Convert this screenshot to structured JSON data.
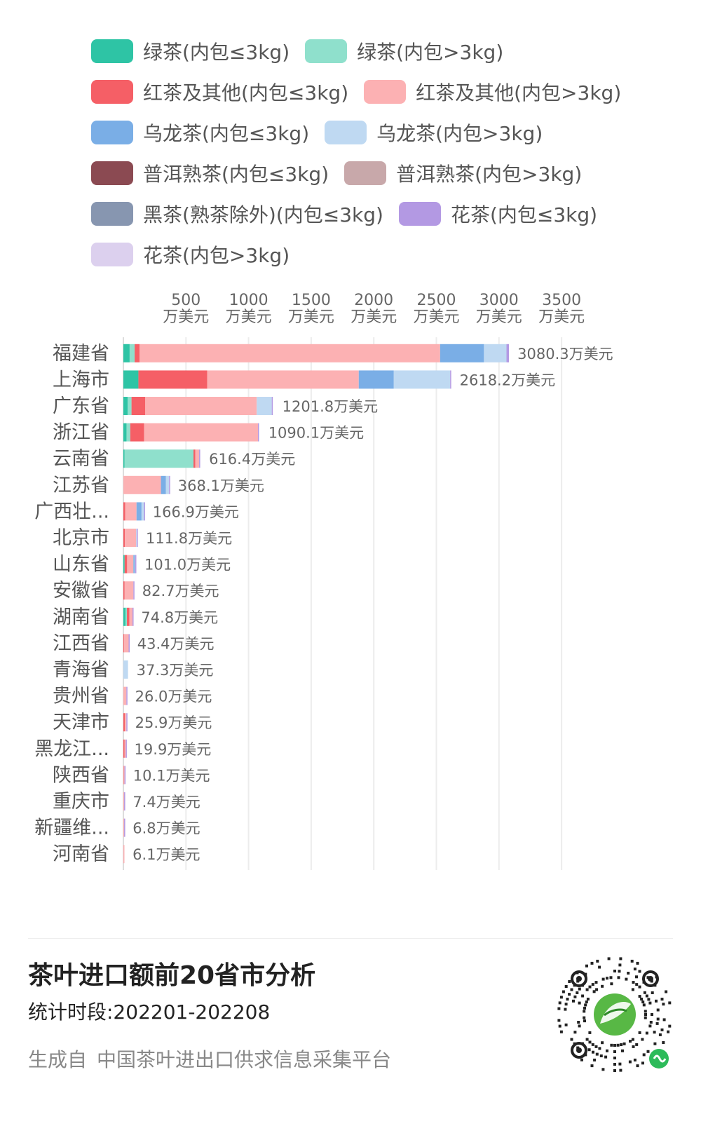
{
  "chart_data": {
    "type": "bar",
    "orientation": "horizontal",
    "stacked": true,
    "x_axis_position": "top",
    "x_ticks": [
      500,
      1000,
      1500,
      2000,
      2500,
      3000,
      3500
    ],
    "x_tick_unit": "万美元",
    "xlim": [
      0,
      3700
    ],
    "grid": true,
    "legend_position": "top",
    "categories": [
      "福建省",
      "上海市",
      "广东省",
      "浙江省",
      "云南省",
      "江苏省",
      "广西壮...",
      "北京市",
      "山东省",
      "安徽省",
      "湖南省",
      "江西省",
      "青海省",
      "贵州省",
      "天津市",
      "黑龙江...",
      "陕西省",
      "重庆市",
      "新疆维...",
      "河南省"
    ],
    "totals": [
      3080.3,
      2618.2,
      1201.8,
      1090.1,
      616.4,
      368.1,
      166.9,
      111.8,
      101.0,
      82.7,
      74.8,
      43.4,
      37.3,
      26.0,
      25.9,
      19.9,
      10.1,
      7.4,
      6.8,
      6.1
    ],
    "total_labels": [
      "3080.3万美元",
      "2618.2万美元",
      "1201.8万美元",
      "1090.1万美元",
      "616.4万美元",
      "368.1万美元",
      "166.9万美元",
      "111.8万美元",
      "101.0万美元",
      "82.7万美元",
      "74.8万美元",
      "43.4万美元",
      "37.3万美元",
      "26.0万美元",
      "25.9万美元",
      "19.9万美元",
      "10.1万美元",
      "7.4万美元",
      "6.8万美元",
      "6.1万美元"
    ],
    "series": [
      {
        "name": "绿茶(内包≤3kg)",
        "color": "#2ec4a5",
        "values": [
          50,
          120,
          35,
          25,
          10,
          0,
          0,
          0,
          10,
          0,
          18,
          0,
          0,
          0,
          0,
          0,
          0,
          0,
          0,
          0
        ]
      },
      {
        "name": "绿茶(内包>3kg)",
        "color": "#8fe0cc",
        "values": [
          40,
          0,
          30,
          30,
          550,
          0,
          0,
          0,
          0,
          0,
          10,
          0,
          0,
          0,
          0,
          0,
          0,
          0,
          0,
          0
        ]
      },
      {
        "name": "红茶及其他(内包≤3kg)",
        "color": "#f55f66",
        "values": [
          40,
          550,
          110,
          110,
          15,
          0,
          15,
          12,
          20,
          10,
          20,
          5,
          0,
          0,
          12,
          10,
          2,
          0,
          0,
          0
        ]
      },
      {
        "name": "红茶及其他(内包>3kg)",
        "color": "#fcb1b3",
        "values": [
          2400,
          1210,
          890,
          910,
          30,
          300,
          90,
          90,
          50,
          70,
          25,
          37,
          0,
          24,
          12,
          9,
          7,
          6,
          6,
          6
        ]
      },
      {
        "name": "乌龙茶(内包≤3kg)",
        "color": "#7aaee6",
        "values": [
          350,
          280,
          0,
          0,
          0,
          40,
          40,
          0,
          10,
          0,
          0,
          0,
          0,
          0,
          0,
          0,
          0,
          0,
          0,
          0
        ]
      },
      {
        "name": "乌龙茶(内包>3kg)",
        "color": "#bfd9f2",
        "values": [
          180,
          450,
          120,
          0,
          0,
          25,
          20,
          5,
          5,
          0,
          0,
          0,
          37,
          0,
          0,
          0,
          0,
          0,
          0,
          0
        ]
      },
      {
        "name": "普洱熟茶(内包≤3kg)",
        "color": "#8b4a52",
        "values": [
          0,
          0,
          0,
          0,
          0,
          0,
          0,
          0,
          0,
          0,
          0,
          0,
          0,
          0,
          0,
          0,
          0,
          0,
          0,
          0
        ]
      },
      {
        "name": "普洱熟茶(内包>3kg)",
        "color": "#c8a8aa",
        "values": [
          0,
          0,
          0,
          0,
          0,
          0,
          0,
          0,
          0,
          0,
          0,
          0,
          0,
          0,
          0,
          0,
          0,
          0,
          0,
          0
        ]
      },
      {
        "name": "黑茶(熟茶除外)(内包≤3kg)",
        "color": "#8796b0",
        "values": [
          0,
          0,
          0,
          0,
          0,
          0,
          0,
          0,
          0,
          0,
          0,
          0,
          0,
          0,
          0,
          0,
          0,
          0,
          0,
          0
        ]
      },
      {
        "name": "花茶(内包≤3kg)",
        "color": "#b399e3",
        "values": [
          20,
          8,
          7,
          5,
          8,
          3,
          2,
          2,
          2,
          2,
          2,
          1,
          0,
          2,
          2,
          1,
          1,
          1,
          1,
          0
        ]
      },
      {
        "name": "花茶(内包>3kg)",
        "color": "#dcd0ee",
        "values": [
          0,
          0,
          0,
          0,
          0,
          0,
          0,
          0,
          0,
          0,
          0,
          0,
          0,
          0,
          0,
          0,
          0,
          0,
          0,
          0
        ]
      }
    ]
  },
  "footer": {
    "title": "茶叶进口额前20省市分析",
    "period": "统计时段:202201-202208",
    "source_prefix": "生成自",
    "source_name": "中国茶叶进出口供求信息采集平台"
  }
}
